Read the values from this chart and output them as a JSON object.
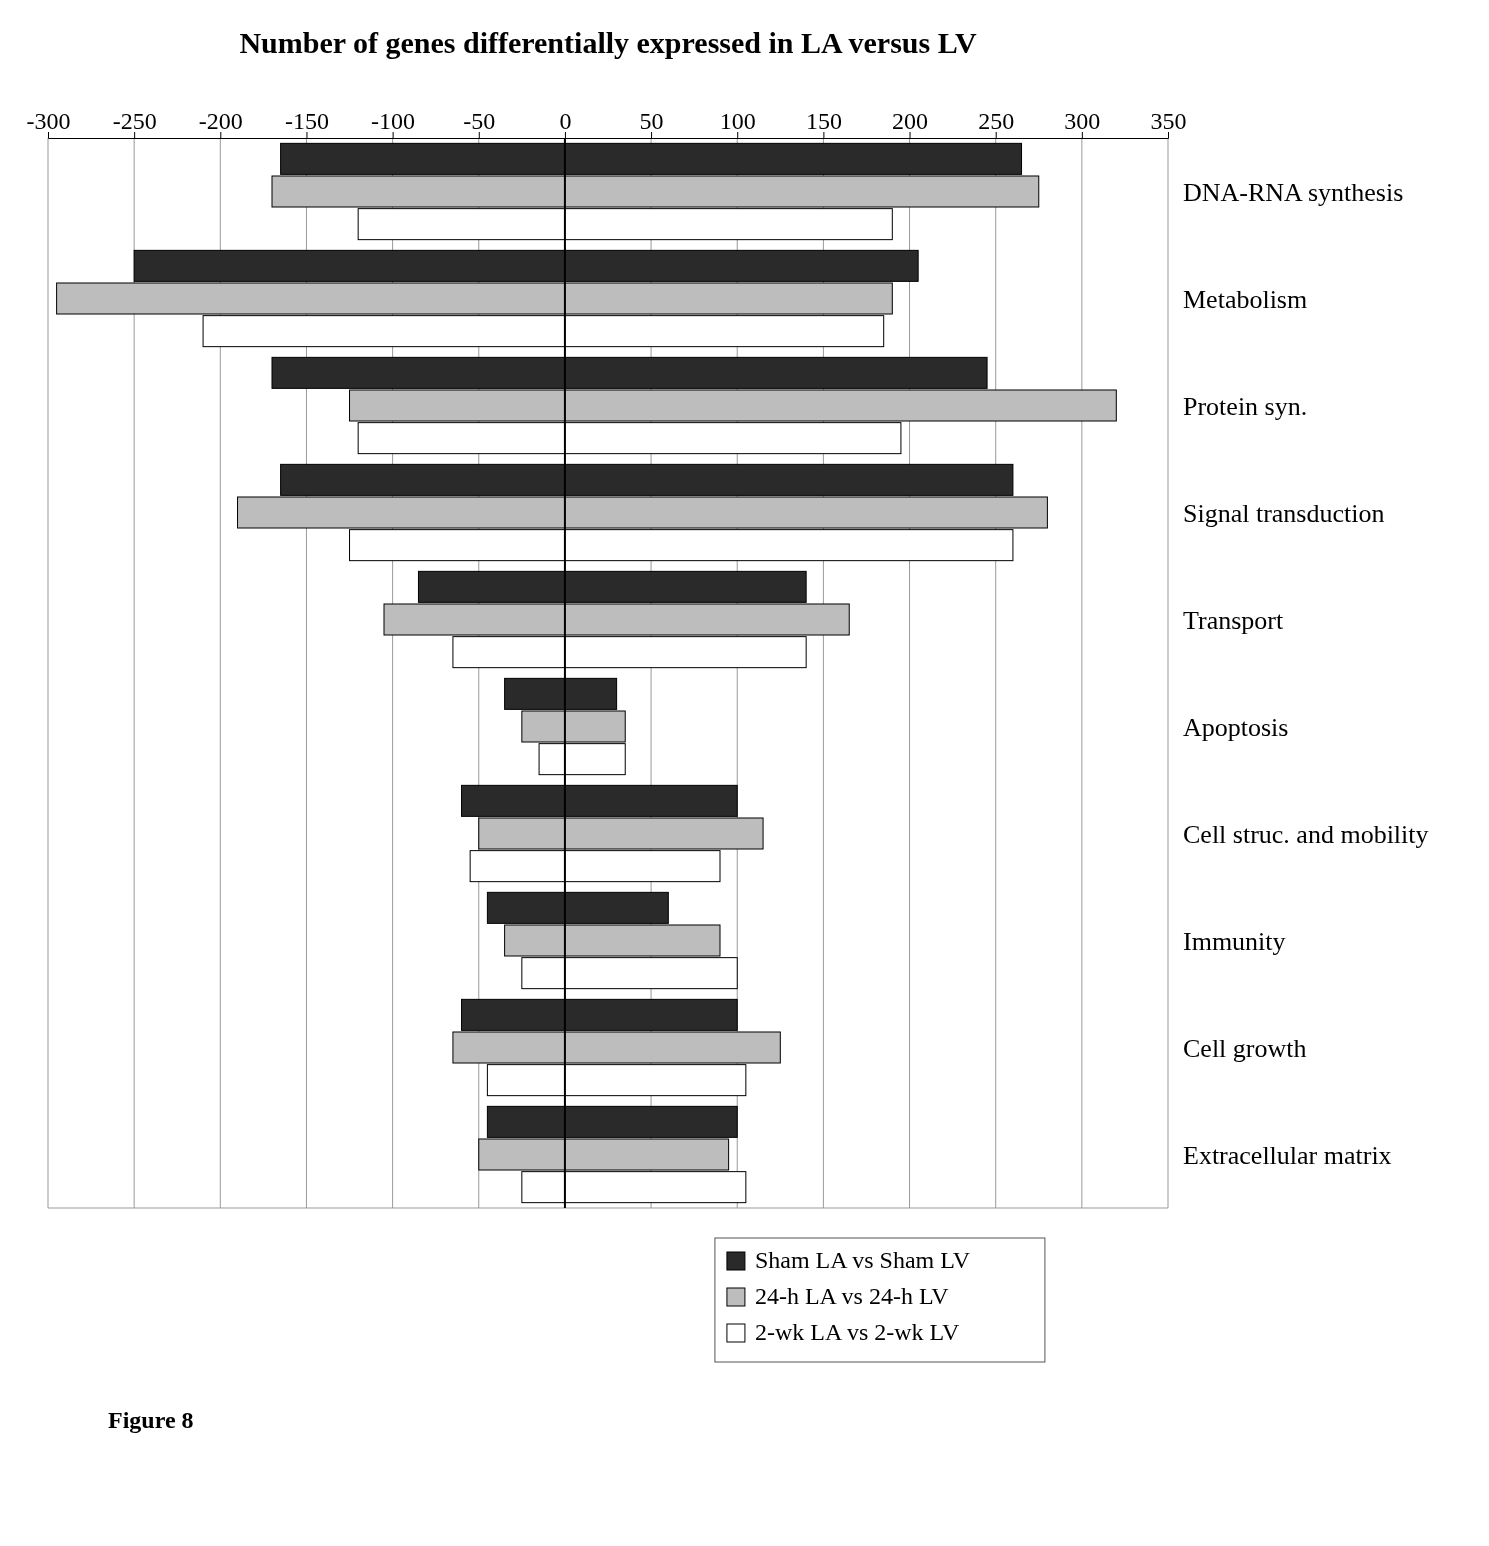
{
  "chart_data": {
    "type": "bar",
    "orientation": "horizontal",
    "title": "Number of genes differentially expressed in LA versus LV",
    "categories": [
      "DNA-RNA synthesis",
      "Metabolism",
      "Protein syn.",
      "Signal transduction",
      "Transport",
      "Apoptosis",
      "Cell struc. and mobility",
      "Immunity",
      "Cell growth",
      "Extracellular matrix"
    ],
    "series": [
      {
        "name": "Sham LA vs Sham LV",
        "color": "#2a2a2a",
        "base": [
          -165,
          -250,
          -170,
          -165,
          -85,
          -35,
          -60,
          -45,
          -60,
          -45
        ],
        "values": [
          430,
          455,
          415,
          425,
          225,
          65,
          160,
          105,
          160,
          145
        ]
      },
      {
        "name": "24-h LA vs 24-h LV",
        "color": "#bdbdbd",
        "base": [
          -170,
          -295,
          -125,
          -190,
          -105,
          -25,
          -50,
          -35,
          -65,
          -50
        ],
        "values": [
          445,
          485,
          445,
          470,
          270,
          60,
          165,
          125,
          190,
          145
        ]
      },
      {
        "name": "2-wk LA vs 2-wk LV",
        "color": "#ffffff",
        "base": [
          -120,
          -210,
          -120,
          -125,
          -65,
          -15,
          -55,
          -25,
          -45,
          -25
        ],
        "values": [
          310,
          395,
          315,
          385,
          205,
          50,
          145,
          125,
          150,
          130
        ]
      }
    ],
    "xlim": [
      -300,
      350
    ],
    "xticks": [
      -300,
      -250,
      -200,
      -150,
      -100,
      -50,
      0,
      50,
      100,
      150,
      200,
      250,
      300,
      350
    ],
    "grid": "x",
    "legend": "bottom",
    "annotations": [
      "Figure 8"
    ]
  }
}
